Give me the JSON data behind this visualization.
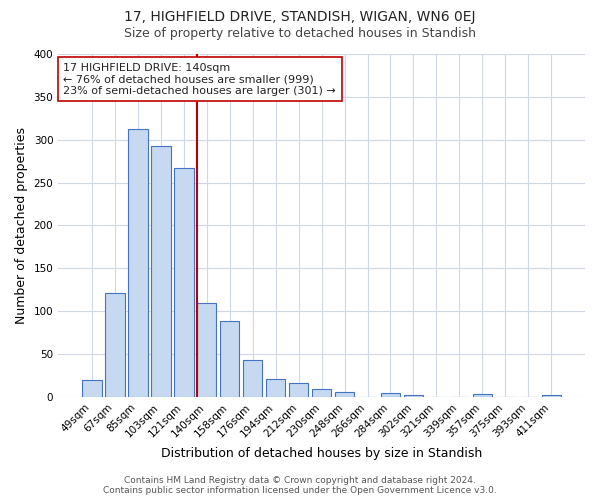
{
  "title": "17, HIGHFIELD DRIVE, STANDISH, WIGAN, WN6 0EJ",
  "subtitle": "Size of property relative to detached houses in Standish",
  "xlabel": "Distribution of detached houses by size in Standish",
  "ylabel": "Number of detached properties",
  "categories": [
    "49sqm",
    "67sqm",
    "85sqm",
    "103sqm",
    "121sqm",
    "140sqm",
    "158sqm",
    "176sqm",
    "194sqm",
    "212sqm",
    "230sqm",
    "248sqm",
    "266sqm",
    "284sqm",
    "302sqm",
    "321sqm",
    "339sqm",
    "357sqm",
    "375sqm",
    "393sqm",
    "411sqm"
  ],
  "values": [
    20,
    121,
    313,
    293,
    267,
    110,
    88,
    43,
    21,
    16,
    9,
    6,
    0,
    5,
    2,
    0,
    0,
    4,
    0,
    0,
    2
  ],
  "bar_color": "#c6d9f0",
  "bar_edge_color": "#4472c4",
  "vline_color": "#c00000",
  "vline_x_index": 5,
  "annotation_text": "17 HIGHFIELD DRIVE: 140sqm\n← 76% of detached houses are smaller (999)\n23% of semi-detached houses are larger (301) →",
  "annotation_box_color": "#ffffff",
  "annotation_box_edge_color": "#c00000",
  "ylim": [
    0,
    400
  ],
  "yticks": [
    0,
    50,
    100,
    150,
    200,
    250,
    300,
    350,
    400
  ],
  "fig_bg_color": "#ffffff",
  "plot_bg_color": "#ffffff",
  "grid_color": "#d0d8e8",
  "title_fontsize": 10,
  "subtitle_fontsize": 9,
  "axis_label_fontsize": 9,
  "tick_fontsize": 7.5,
  "annotation_fontsize": 8,
  "footer_fontsize": 6.5,
  "footer": "Contains HM Land Registry data © Crown copyright and database right 2024.\nContains public sector information licensed under the Open Government Licence v3.0."
}
